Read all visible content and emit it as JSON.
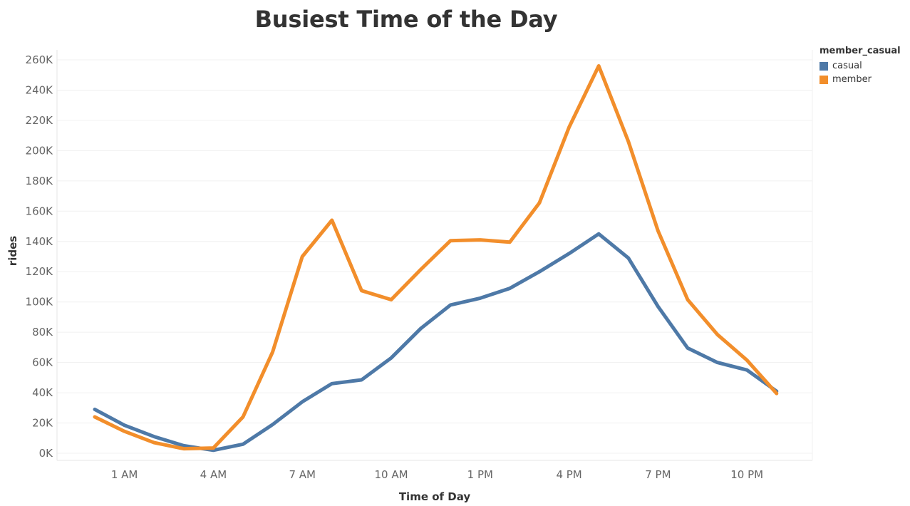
{
  "chart_data": {
    "type": "line",
    "title": "Busiest Time of the Day",
    "xlabel": "Time of Day",
    "ylabel": "rides",
    "x": [
      "12 AM",
      "1 AM",
      "2 AM",
      "3 AM",
      "4 AM",
      "5 AM",
      "6 AM",
      "7 AM",
      "8 AM",
      "9 AM",
      "10 AM",
      "11 AM",
      "12 PM",
      "1 PM",
      "2 PM",
      "3 PM",
      "4 PM",
      "5 PM",
      "6 PM",
      "7 PM",
      "8 PM",
      "9 PM",
      "10 PM",
      "11 PM"
    ],
    "x_tick_labels": [
      "1 AM",
      "4 AM",
      "7 AM",
      "10 AM",
      "1 PM",
      "4 PM",
      "7 PM",
      "10 PM"
    ],
    "y_tick_labels": [
      "0K",
      "20K",
      "40K",
      "60K",
      "80K",
      "100K",
      "120K",
      "140K",
      "160K",
      "180K",
      "200K",
      "220K",
      "240K",
      "260K"
    ],
    "ylim": [
      0,
      260000
    ],
    "grid": "horizontal",
    "legend": {
      "title": "member_casual",
      "placement": "top-right"
    },
    "series": [
      {
        "name": "casual",
        "color": "#4e79a7",
        "values": [
          29000,
          18500,
          11000,
          5000,
          2000,
          6000,
          19000,
          34000,
          46000,
          48500,
          63000,
          82500,
          98000,
          102500,
          109000,
          120000,
          132000,
          145000,
          129000,
          97000,
          69500,
          60000,
          55000,
          41000
        ]
      },
      {
        "name": "member",
        "color": "#f28e2b",
        "values": [
          24000,
          14500,
          7000,
          3000,
          3500,
          24000,
          67000,
          130000,
          154000,
          107500,
          101500,
          121500,
          140500,
          141000,
          139500,
          165500,
          215500,
          256000,
          206000,
          147000,
          101500,
          78500,
          61500,
          39500
        ]
      }
    ]
  }
}
